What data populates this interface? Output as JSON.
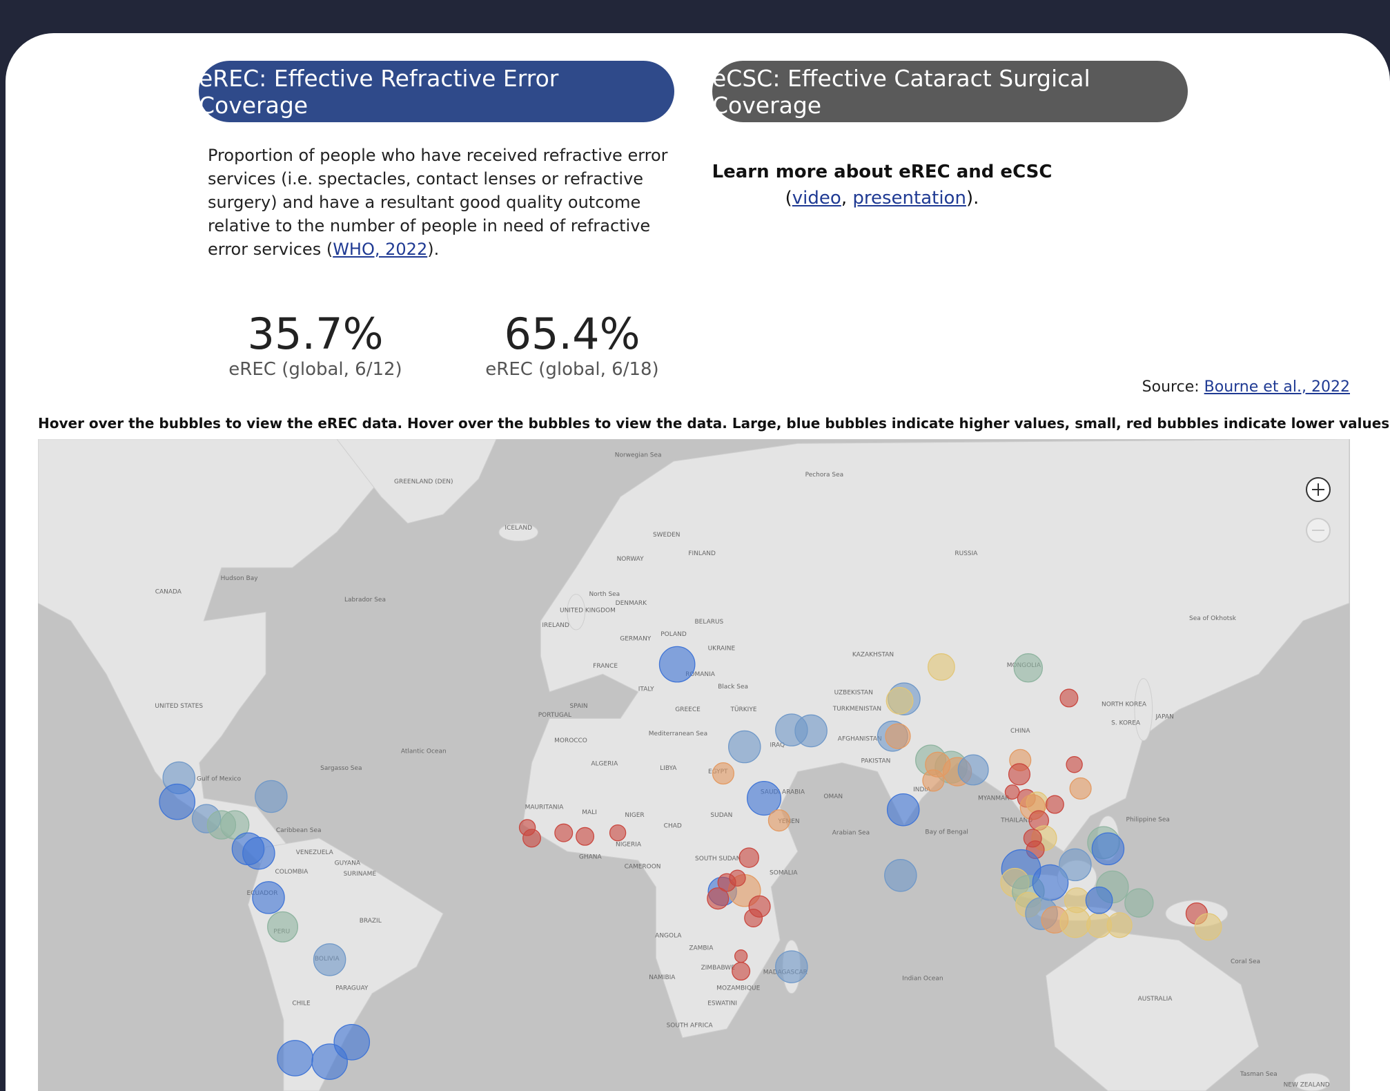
{
  "tabs": [
    {
      "label": "eREC: Effective Refractive Error Coverage"
    },
    {
      "label": "eCSC: Effective Cataract Surgical Coverage"
    }
  ],
  "description": {
    "text": "Proportion of people who have received refractive error services (i.e. spectacles, contact lenses or refractive surgery) and have a resultant good quality outcome relative to the number of people in need of refractive error services (",
    "link": "WHO, 2022",
    "end": ")."
  },
  "learn_more": {
    "title": "Learn more about eREC and eCSC",
    "open": "(",
    "links": [
      "video",
      "presentation"
    ],
    "separator": ",",
    "close": ")."
  },
  "stats": [
    {
      "value": "35.7%",
      "label": "eREC (global, 6/12)"
    },
    {
      "value": "65.4%",
      "label": "eREC (global, 6/18)"
    }
  ],
  "source": {
    "prefix": "Source:",
    "link": "Bourne et al., 2022"
  },
  "instruction": "Hover over the bubbles to view the eREC data. Hover over the bubbles to view the data. Large, blue bubbles indicate higher values, small, red bubbles indicate lower values.",
  "map": {
    "labels": [
      "GREENLAND (DEN)",
      "Norwegian Sea",
      "Pechora Sea",
      "ICELAND",
      "SWEDEN",
      "NORWAY",
      "FINLAND",
      "RUSSIA",
      "Hudson Bay",
      "CANADA",
      "Labrador Sea",
      "North Sea",
      "DENMARK",
      "UNITED KINGDOM",
      "IRELAND",
      "POLAND",
      "BELARUS",
      "GERMANY",
      "UKRAINE",
      "FRANCE",
      "ROMANIA",
      "ITALY",
      "Black Sea",
      "KAZAKHSTAN",
      "MONGOLIA",
      "UZBEKISTAN",
      "TURKMENISTAN",
      "UNITED STATES",
      "SPAIN",
      "PORTUGAL",
      "GREECE",
      "TÜRKIYE",
      "Mediterranean Sea",
      "MOROCCO",
      "Atlantic Ocean",
      "Sargasso Sea",
      "Gulf of Mexico",
      "ALGERIA",
      "LIBYA",
      "EGYPT",
      "IRAQ",
      "AFGHANISTAN",
      "PAKISTAN",
      "CHINA",
      "NORTH KOREA",
      "S. KOREA",
      "JAPAN",
      "Sea of Okhotsk",
      "INDIA",
      "MYANMAR",
      "THAILAND",
      "Philippine Sea",
      "Bay of Bengal",
      "Arabian Sea",
      "OMAN",
      "SAUDI ARABIA",
      "YEMEN",
      "SUDAN",
      "CHAD",
      "NIGER",
      "MALI",
      "MAURITANIA",
      "NIGERIA",
      "GHANA",
      "CAMEROON",
      "SOUTH SUDAN",
      "SOMALIA",
      "Caribbean Sea",
      "VENEZUELA",
      "GUYANA",
      "SURINAME",
      "COLOMBIA",
      "ECUADOR",
      "PERU",
      "BRAZIL",
      "BOLIVIA",
      "PARAGUAY",
      "CHILE",
      "ANGOLA",
      "ZAMBIA",
      "NAMIBIA",
      "ZIMBABWE",
      "MOZAMBIQUE",
      "MADAGASCAR",
      "ESWATINI",
      "SOUTH AFRICA",
      "Indian Ocean",
      "AUSTRALIA",
      "Coral Sea",
      "Tasman Sea",
      "NEW ZEALAND"
    ]
  }
}
